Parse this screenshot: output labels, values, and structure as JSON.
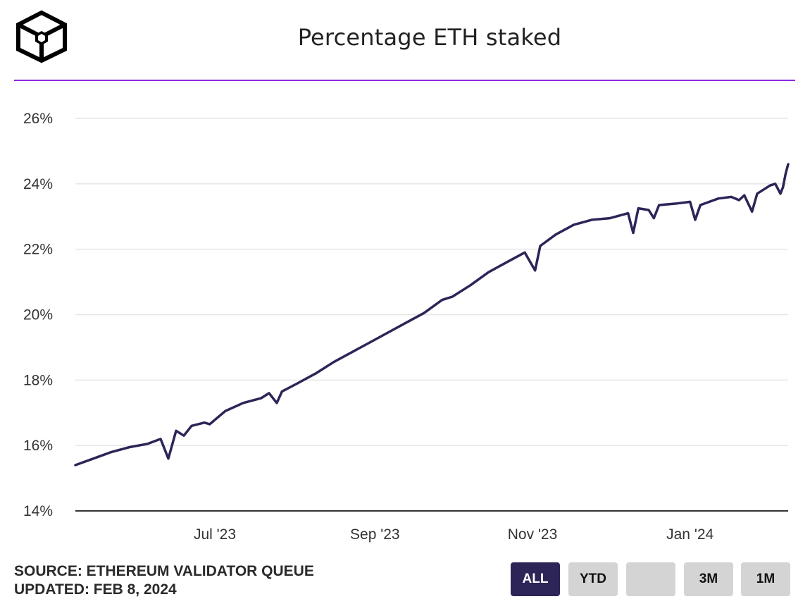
{
  "header": {
    "title": "Percentage ETH staked"
  },
  "footer": {
    "source": "SOURCE: ETHEREUM VALIDATOR QUEUE",
    "updated": "UPDATED: FEB 8, 2024"
  },
  "range_buttons": [
    {
      "label": "ALL",
      "active": true
    },
    {
      "label": "YTD",
      "active": false
    },
    {
      "label": "",
      "active": false
    },
    {
      "label": "3M",
      "active": false
    },
    {
      "label": "1M",
      "active": false
    }
  ],
  "colors": {
    "line": "#2d2458",
    "accent_rule": "#8a2be2",
    "grid": "#e6e6e6",
    "active_button": "#2d2458"
  },
  "chart_data": {
    "type": "line",
    "title": "Percentage ETH staked",
    "xlabel": "",
    "ylabel": "",
    "xlim": [
      "2023-05-08",
      "2024-02-08"
    ],
    "ylim": [
      14,
      26
    ],
    "y_ticks": [
      "14%",
      "16%",
      "18%",
      "20%",
      "22%",
      "24%",
      "26%"
    ],
    "x_ticks": [
      {
        "label": "Jul '23",
        "date": "2023-07-01"
      },
      {
        "label": "Sep '23",
        "date": "2023-09-01"
      },
      {
        "label": "Nov '23",
        "date": "2023-11-01"
      },
      {
        "label": "Jan '24",
        "date": "2024-01-01"
      }
    ],
    "grid": true,
    "legend": "none",
    "series": [
      {
        "values": [
          [
            "2023-05-08",
            15.4
          ],
          [
            "2023-05-15",
            15.6
          ],
          [
            "2023-05-22",
            15.8
          ],
          [
            "2023-05-29",
            15.95
          ],
          [
            "2023-06-05",
            16.05
          ],
          [
            "2023-06-10",
            16.2
          ],
          [
            "2023-06-13",
            15.6
          ],
          [
            "2023-06-16",
            16.45
          ],
          [
            "2023-06-19",
            16.3
          ],
          [
            "2023-06-22",
            16.6
          ],
          [
            "2023-06-27",
            16.7
          ],
          [
            "2023-06-29",
            16.65
          ],
          [
            "2023-07-05",
            17.05
          ],
          [
            "2023-07-12",
            17.3
          ],
          [
            "2023-07-19",
            17.45
          ],
          [
            "2023-07-22",
            17.6
          ],
          [
            "2023-07-25",
            17.3
          ],
          [
            "2023-07-27",
            17.65
          ],
          [
            "2023-08-02",
            17.9
          ],
          [
            "2023-08-09",
            18.2
          ],
          [
            "2023-08-16",
            18.55
          ],
          [
            "2023-08-23",
            18.85
          ],
          [
            "2023-08-30",
            19.15
          ],
          [
            "2023-09-06",
            19.45
          ],
          [
            "2023-09-13",
            19.75
          ],
          [
            "2023-09-20",
            20.05
          ],
          [
            "2023-09-27",
            20.45
          ],
          [
            "2023-10-01",
            20.55
          ],
          [
            "2023-10-08",
            20.9
          ],
          [
            "2023-10-15",
            21.3
          ],
          [
            "2023-10-22",
            21.6
          ],
          [
            "2023-10-29",
            21.9
          ],
          [
            "2023-11-02",
            21.35
          ],
          [
            "2023-11-04",
            22.1
          ],
          [
            "2023-11-10",
            22.45
          ],
          [
            "2023-11-17",
            22.75
          ],
          [
            "2023-11-24",
            22.9
          ],
          [
            "2023-12-01",
            22.95
          ],
          [
            "2023-12-08",
            23.1
          ],
          [
            "2023-12-10",
            22.5
          ],
          [
            "2023-12-12",
            23.25
          ],
          [
            "2023-12-16",
            23.2
          ],
          [
            "2023-12-18",
            22.95
          ],
          [
            "2023-12-20",
            23.35
          ],
          [
            "2023-12-27",
            23.4
          ],
          [
            "2024-01-01",
            23.45
          ],
          [
            "2024-01-03",
            22.9
          ],
          [
            "2024-01-05",
            23.35
          ],
          [
            "2024-01-12",
            23.55
          ],
          [
            "2024-01-17",
            23.6
          ],
          [
            "2024-01-20",
            23.5
          ],
          [
            "2024-01-22",
            23.65
          ],
          [
            "2024-01-25",
            23.15
          ],
          [
            "2024-01-27",
            23.7
          ],
          [
            "2024-02-01",
            23.95
          ],
          [
            "2024-02-03",
            24.0
          ],
          [
            "2024-02-05",
            23.7
          ],
          [
            "2024-02-06",
            23.9
          ],
          [
            "2024-02-07",
            24.3
          ],
          [
            "2024-02-08",
            24.6
          ]
        ]
      }
    ]
  }
}
